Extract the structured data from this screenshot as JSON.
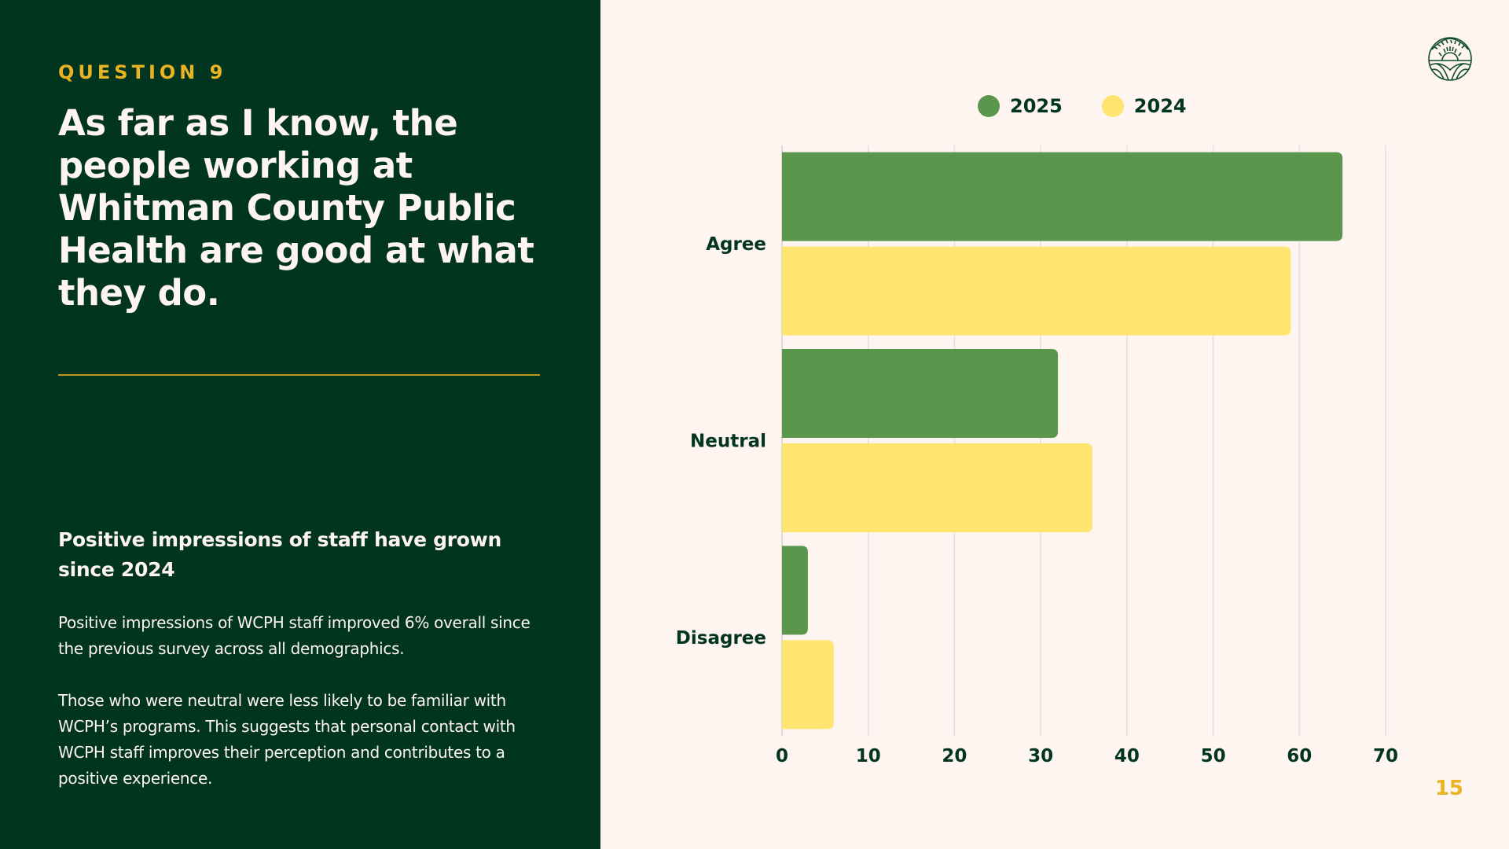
{
  "left_panel": {
    "eyebrow": "QUESTION 9",
    "title": "As far as I know, the people working at Whitman County Public Health are good at what they do.",
    "subheading": "Positive impressions of staff have grown since 2024",
    "paragraphs": [
      "Positive impressions of WCPH staff improved 6% overall since the previous survey across all demographics.",
      "Those who were neutral were less likely to be familiar with WCPH’s programs. This suggests that personal contact with WCPH staff improves their perception and contributes to a positive experience."
    ]
  },
  "logo": {
    "icon": "sunrise-hills-emblem-icon"
  },
  "page_number": "15",
  "colors": {
    "panel_bg": "#023520",
    "page_bg": "#FEF4F0",
    "accent": "#E9B424",
    "series_2025": "#5A964C",
    "series_2024": "#FFE56F",
    "grid": "#E4DCD8"
  },
  "chart_data": {
    "type": "bar",
    "orientation": "horizontal",
    "title": "",
    "xlabel": "",
    "ylabel": "",
    "categories": [
      "Agree",
      "Neutral",
      "Disagree"
    ],
    "series": [
      {
        "name": "2025",
        "color": "#5A964C",
        "values": [
          65,
          32,
          3
        ]
      },
      {
        "name": "2024",
        "color": "#FFE56F",
        "values": [
          59,
          36,
          6
        ]
      }
    ],
    "xlim": [
      0,
      70
    ],
    "xticks": [
      0,
      10,
      20,
      30,
      40,
      50,
      60,
      70
    ],
    "grid": true,
    "legend": {
      "placement": "top-center",
      "entries": [
        "2025",
        "2024"
      ]
    }
  }
}
